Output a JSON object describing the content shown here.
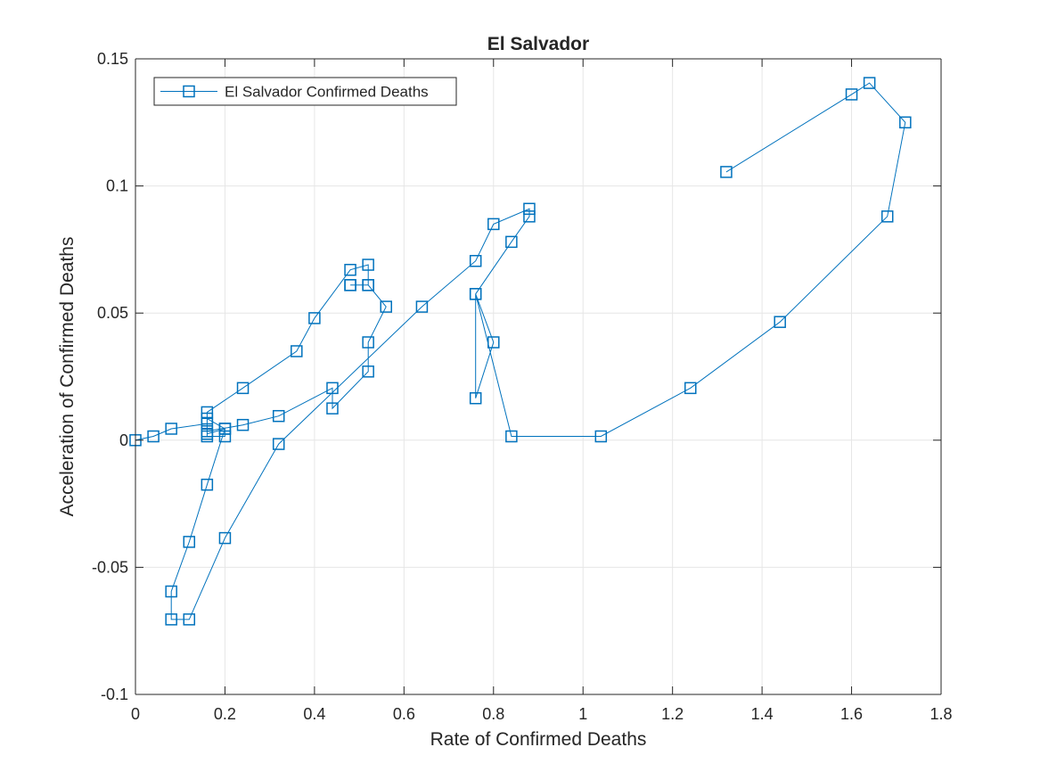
{
  "chart_data": {
    "type": "line",
    "title": "El Salvador",
    "xlabel": "Rate of Confirmed Deaths",
    "ylabel": "Acceleration of Confirmed Deaths",
    "xlim": [
      0,
      1.8
    ],
    "ylim": [
      -0.1,
      0.15
    ],
    "xticks": [
      0,
      0.2,
      0.4,
      0.6,
      0.8,
      1,
      1.2,
      1.4,
      1.6,
      1.8
    ],
    "xtick_labels": [
      "0",
      "0.2",
      "0.4",
      "0.6",
      "0.8",
      "1",
      "1.2",
      "1.4",
      "1.6",
      "1.8"
    ],
    "yticks": [
      -0.1,
      -0.05,
      0,
      0.05,
      0.1,
      0.15
    ],
    "ytick_labels": [
      "-0.1",
      "-0.05",
      "0",
      "0.05",
      "0.1",
      "0.15"
    ],
    "grid": true,
    "legend_position": "top-left",
    "series": [
      {
        "name": "El Salvador Confirmed Deaths",
        "color": "#0072BD",
        "marker": "square",
        "x": [
          0,
          0.04,
          0.08,
          0.16,
          0.16,
          0.2,
          0.2,
          0.16,
          0.16,
          0.24,
          0.36,
          0.4,
          0.48,
          0.52,
          0.52,
          0.48,
          0.48,
          0.52,
          0.56,
          0.52,
          0.52,
          0.44,
          0.44,
          0.32,
          0.24,
          0.16,
          0.16,
          0.2,
          0.16,
          0.12,
          0.08,
          0.08,
          0.12,
          0.2,
          0.32,
          0.64,
          0.76,
          0.8,
          0.88,
          0.88,
          0.84,
          0.76,
          0.76,
          0.8,
          0.76,
          0.84,
          1.04,
          1.24,
          1.44,
          1.68,
          1.72,
          1.64,
          1.6,
          1.32
        ],
        "y": [
          0,
          0.0015,
          0.0045,
          0.0065,
          0.0025,
          0.0045,
          0.0015,
          0.0015,
          0.011,
          0.0205,
          0.035,
          0.048,
          0.067,
          0.069,
          0.061,
          0.061,
          0.061,
          0.061,
          0.0525,
          0.0385,
          0.027,
          0.0125,
          0.0205,
          0.0095,
          0.006,
          0.0035,
          0.0085,
          0.0045,
          -0.0175,
          -0.04,
          -0.0595,
          -0.0705,
          -0.0705,
          -0.0385,
          -0.0015,
          0.0525,
          0.0705,
          0.085,
          0.091,
          0.088,
          0.078,
          0.0575,
          0.0165,
          0.0385,
          0.0575,
          0.0015,
          0.0015,
          0.0205,
          0.0465,
          0.088,
          0.125,
          0.1405,
          0.136,
          0.1055
        ]
      }
    ]
  }
}
